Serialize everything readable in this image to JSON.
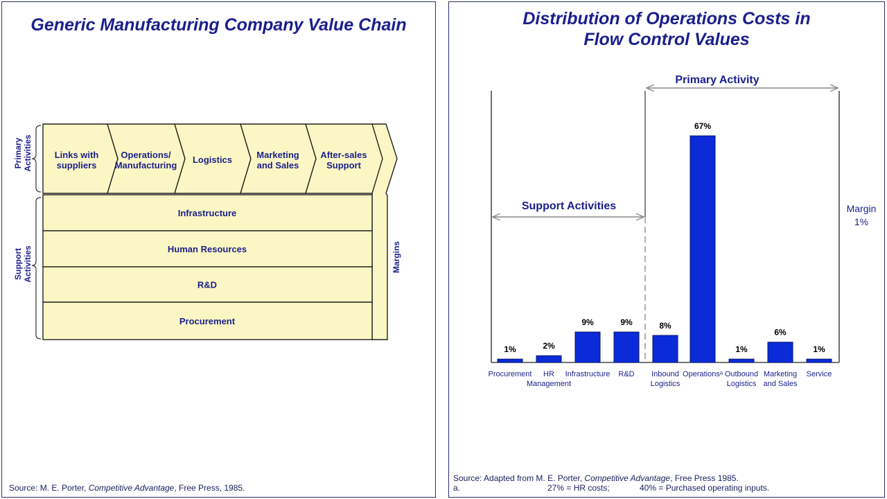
{
  "left": {
    "title": "Generic Manufacturing Company Value Chain",
    "primary_label_1": "Primary",
    "primary_label_2": "Activities",
    "support_label_1": "Support",
    "support_label_2": "Activities",
    "margins_label": "Margins",
    "primary_activities": [
      [
        "Links with",
        "suppliers"
      ],
      [
        "Operations/",
        "Manufacturing"
      ],
      [
        "Logistics"
      ],
      [
        "Marketing",
        "and Sales"
      ],
      [
        "After-sales",
        "Support"
      ]
    ],
    "support_activities": [
      "Infrastructure",
      "Human Resources",
      "R&D",
      "Procurement"
    ],
    "source_prefix": "Source: M. E. Porter, ",
    "source_italic": "Competitive Advantage",
    "source_suffix": ", Free Press, 1985."
  },
  "right": {
    "title_line1": "Distribution of Operations Costs in",
    "title_line2": "Flow Control Values",
    "primary_activity_label": "Primary Activity",
    "support_activities_label": "Support Activities",
    "margin_label_1": "Margin",
    "margin_label_2": "1%",
    "source_prefix": "Source: Adapted from M. E. Porter, ",
    "source_italic": "Competitive Advantage",
    "source_suffix": ", Free Press 1985.",
    "footnote_marker": "a.",
    "footnote_hr": "27% = HR costs;",
    "footnote_purchased": "40% = Purchased operating inputs."
  },
  "colors": {
    "bar": "#0b2ad8",
    "chain_fill": "#fbf7c4",
    "text_navy": "#1a1f8c",
    "axis": "#333333"
  },
  "chart_data": {
    "type": "bar",
    "title": "Distribution of Operations Costs in Flow Control Values",
    "xlabel": "",
    "ylabel": "",
    "ylim": [
      0,
      70
    ],
    "categories": [
      [
        "Procurement"
      ],
      [
        "HR",
        "Management"
      ],
      [
        "Infrastructure"
      ],
      [
        "R&D"
      ],
      [
        "Inbound",
        "Logistics"
      ],
      [
        "Operationsᵃ"
      ],
      [
        "Outbound",
        "Logistics"
      ],
      [
        "Marketing",
        "and Sales"
      ],
      [
        "Service"
      ]
    ],
    "values": [
      1,
      2,
      9,
      9,
      8,
      67,
      1,
      6,
      1
    ],
    "value_labels": [
      "1%",
      "2%",
      "9%",
      "9%",
      "8%",
      "67%",
      "1%",
      "6%",
      "1%"
    ],
    "groups": [
      {
        "name": "Support Activities",
        "categories": [
          0,
          1,
          2,
          3
        ]
      },
      {
        "name": "Primary Activity",
        "categories": [
          4,
          5,
          6,
          7,
          8
        ]
      }
    ],
    "margin": "1%"
  }
}
